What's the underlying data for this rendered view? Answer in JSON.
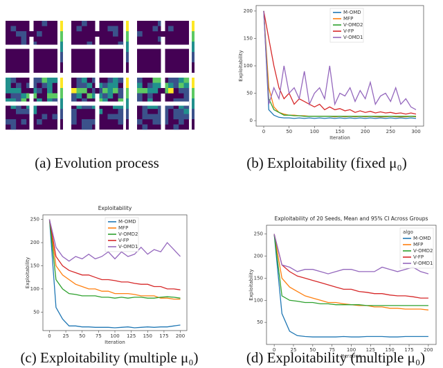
{
  "captions": [
    "(a) Evolution process",
    "(b) Exploitability (fixed μ₀)",
    "(c) Exploitability (multiple μ₀)",
    "(d) Exploitability (multiple μ₀)"
  ],
  "chart_data": [
    {
      "type": "line",
      "xlabel": "Iteration",
      "ylabel": "Exploitability",
      "legend": "upper center",
      "x": [
        0,
        10,
        20,
        30,
        40,
        50,
        60,
        70,
        80,
        90,
        100,
        110,
        120,
        130,
        140,
        150,
        160,
        170,
        180,
        190,
        200,
        210,
        220,
        230,
        240,
        250,
        260,
        270,
        280,
        290,
        300
      ],
      "xlim": [
        -15,
        315
      ],
      "xticks": [
        0,
        50,
        100,
        150,
        200,
        250,
        300
      ],
      "ylim": [
        -10,
        210
      ],
      "yticks": [
        0,
        50,
        100,
        150,
        200
      ],
      "series": [
        {
          "name": "M-OMD",
          "color": "#1f77b4",
          "values": [
            200,
            20,
            10,
            6,
            5,
            5,
            4,
            5,
            4,
            5,
            4,
            5,
            4,
            5,
            4,
            5,
            4,
            5,
            4,
            5,
            4,
            5,
            4,
            5,
            4,
            5,
            4,
            5,
            4,
            5,
            4
          ]
        },
        {
          "name": "MFP",
          "color": "#ff7f0e",
          "values": [
            200,
            60,
            25,
            15,
            12,
            10,
            10,
            9,
            9,
            8,
            8,
            8,
            8,
            8,
            7,
            8,
            7,
            8,
            7,
            8,
            7,
            8,
            7,
            7,
            7,
            8,
            7,
            7,
            7,
            8,
            7
          ]
        },
        {
          "name": "V-OMD2",
          "color": "#2ca02c",
          "values": [
            200,
            40,
            20,
            15,
            10,
            10,
            9,
            9,
            8,
            8,
            8,
            8,
            8,
            8,
            8,
            8,
            8,
            8,
            8,
            8,
            8,
            8,
            8,
            8,
            8,
            8,
            8,
            8,
            8,
            8,
            8
          ]
        },
        {
          "name": "V-FP",
          "color": "#d62728",
          "values": [
            200,
            150,
            100,
            60,
            40,
            50,
            30,
            40,
            35,
            30,
            25,
            30,
            20,
            25,
            20,
            22,
            18,
            20,
            15,
            18,
            15,
            17,
            14,
            16,
            14,
            15,
            13,
            14,
            12,
            14,
            12
          ]
        },
        {
          "name": "V-OMD1",
          "color": "#9467bd",
          "values": [
            200,
            30,
            60,
            40,
            100,
            50,
            60,
            40,
            90,
            30,
            50,
            60,
            40,
            100,
            30,
            50,
            45,
            60,
            35,
            55,
            40,
            70,
            30,
            45,
            50,
            35,
            60,
            30,
            40,
            25,
            20
          ]
        }
      ]
    },
    {
      "type": "line",
      "title": "Exploitability",
      "xlabel": "Iteration",
      "ylabel": "Exploitability",
      "legend": "upper center",
      "x": [
        0,
        10,
        20,
        30,
        40,
        50,
        60,
        70,
        80,
        90,
        100,
        110,
        120,
        130,
        140,
        150,
        160,
        170,
        180,
        190,
        200
      ],
      "xlim": [
        -10,
        210
      ],
      "xticks": [
        0,
        25,
        50,
        75,
        100,
        125,
        150,
        175,
        200
      ],
      "ylim": [
        10,
        260
      ],
      "yticks": [
        50,
        100,
        150,
        200,
        250
      ],
      "series": [
        {
          "name": "M-OMD",
          "color": "#1f77b4",
          "values": [
            250,
            60,
            35,
            20,
            20,
            18,
            18,
            17,
            17,
            17,
            16,
            17,
            18,
            16,
            17,
            18,
            17,
            18,
            18,
            20,
            22
          ]
        },
        {
          "name": "MFP",
          "color": "#ff7f0e",
          "values": [
            250,
            150,
            130,
            120,
            110,
            105,
            100,
            100,
            95,
            95,
            90,
            90,
            90,
            88,
            85,
            85,
            85,
            80,
            80,
            78,
            78
          ]
        },
        {
          "name": "V-OMD2",
          "color": "#2ca02c",
          "values": [
            250,
            120,
            100,
            90,
            88,
            85,
            85,
            85,
            82,
            82,
            80,
            82,
            80,
            82,
            82,
            80,
            80,
            82,
            83,
            82,
            80
          ]
        },
        {
          "name": "V-FP",
          "color": "#d62728",
          "values": [
            250,
            170,
            150,
            140,
            135,
            130,
            130,
            125,
            120,
            120,
            118,
            115,
            115,
            112,
            110,
            110,
            105,
            105,
            100,
            100,
            98
          ]
        },
        {
          "name": "V-OMD1",
          "color": "#9467bd",
          "values": [
            250,
            190,
            170,
            160,
            170,
            165,
            175,
            165,
            170,
            180,
            165,
            180,
            170,
            175,
            190,
            175,
            185,
            180,
            200,
            185,
            170
          ]
        }
      ]
    },
    {
      "type": "line",
      "title": "Exploitability of 20 Seeds, Mean and 95% CI Across Groups",
      "xlabel": "Iteration",
      "ylabel": "Exploitability",
      "legend": "upper right",
      "legend_title": "algo",
      "x": [
        0,
        10,
        20,
        30,
        40,
        50,
        60,
        70,
        80,
        90,
        100,
        110,
        120,
        130,
        140,
        150,
        160,
        170,
        180,
        190,
        200
      ],
      "xlim": [
        -10,
        210
      ],
      "xticks": [
        0,
        25,
        50,
        75,
        100,
        125,
        150,
        175,
        200
      ],
      "ylim": [
        0,
        270
      ],
      "yticks": [
        50,
        100,
        150,
        200,
        250
      ],
      "series": [
        {
          "name": "M-OMD",
          "color": "#1f77b4",
          "values": [
            250,
            70,
            30,
            20,
            18,
            17,
            17,
            17,
            17,
            18,
            17,
            17,
            18,
            18,
            18,
            17,
            17,
            18,
            18,
            18,
            18
          ]
        },
        {
          "name": "MFP",
          "color": "#ff7f0e",
          "values": [
            250,
            150,
            130,
            120,
            110,
            105,
            100,
            95,
            95,
            92,
            90,
            88,
            88,
            85,
            85,
            82,
            82,
            80,
            80,
            80,
            78
          ]
        },
        {
          "name": "V-OMD2",
          "color": "#2ca02c",
          "values": [
            250,
            110,
            100,
            98,
            95,
            95,
            92,
            92,
            90,
            90,
            90,
            90,
            88,
            88,
            88,
            88,
            88,
            88,
            88,
            88,
            88
          ]
        },
        {
          "name": "V-FP",
          "color": "#d62728",
          "values": [
            250,
            180,
            165,
            155,
            150,
            145,
            140,
            135,
            130,
            125,
            125,
            120,
            118,
            115,
            115,
            112,
            110,
            110,
            108,
            105,
            105
          ]
        },
        {
          "name": "V-OMD1",
          "color": "#9467bd",
          "values": [
            250,
            180,
            175,
            165,
            170,
            170,
            165,
            160,
            165,
            170,
            170,
            165,
            165,
            165,
            175,
            170,
            165,
            170,
            175,
            165,
            160
          ]
        }
      ]
    }
  ]
}
